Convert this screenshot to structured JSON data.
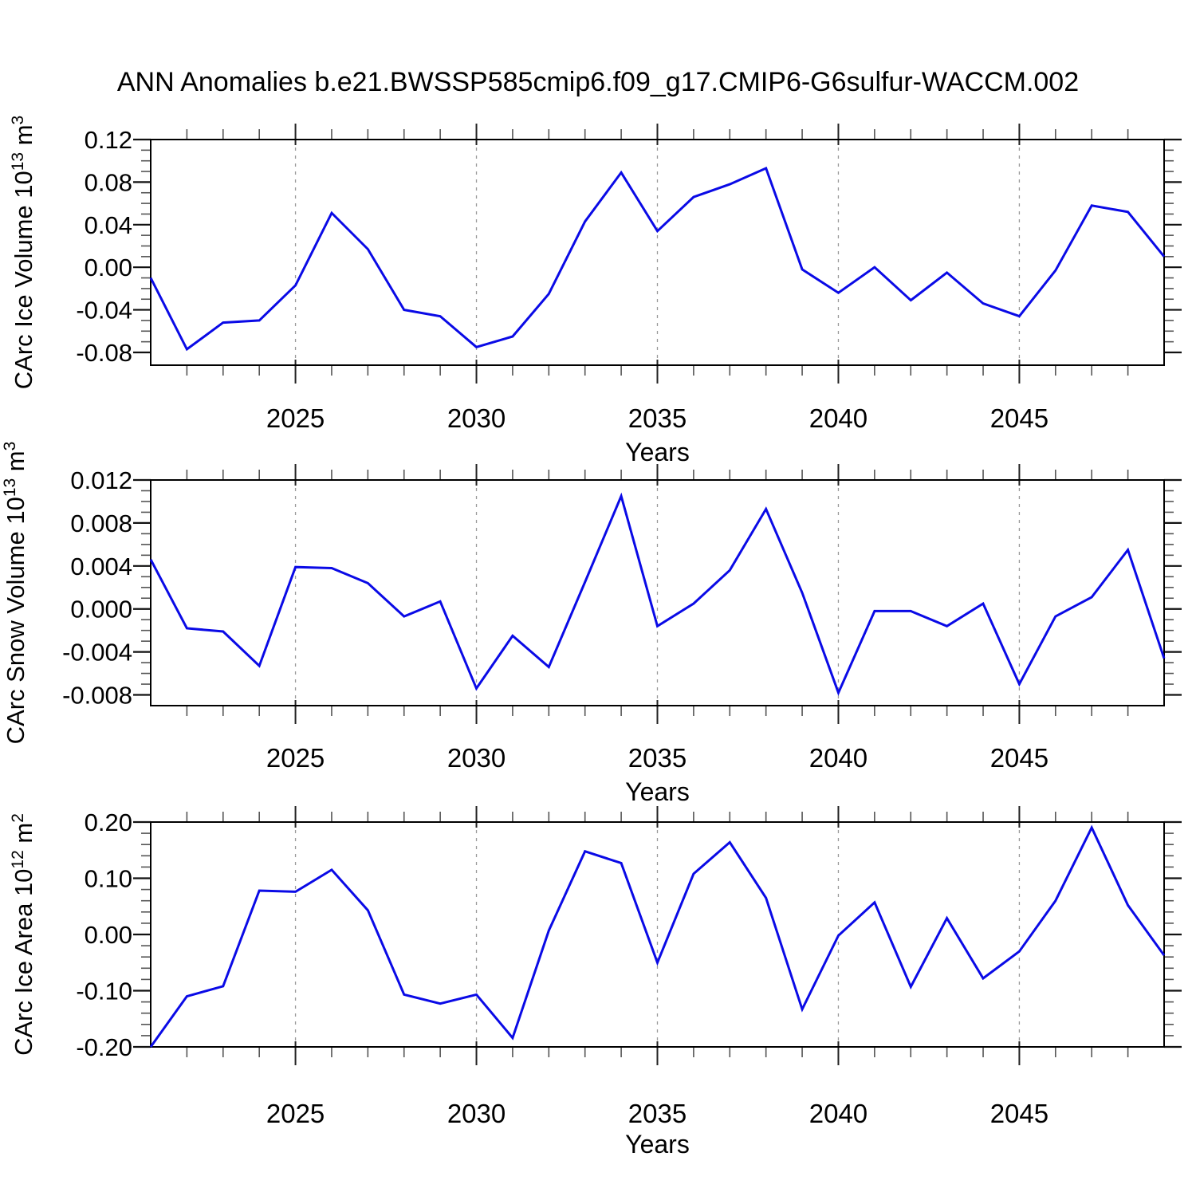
{
  "page_title": "ANN Anomalies b.e21.BWSSP585cmip6.f09_g17.CMIP6-G6sulfur-WACCM.002",
  "colors": {
    "line": "#0a0ae6",
    "grid": "#999999",
    "axis": "#000000",
    "minor_tick": "#555555"
  },
  "x_axis": {
    "label": "Years",
    "start": 2021,
    "end": 2049,
    "major_ticks": [
      2025,
      2030,
      2035,
      2040,
      2045
    ],
    "minor_tick_step": 1
  },
  "chart_data": [
    {
      "name": "carc-ice-volume",
      "type": "line",
      "ylabel_plain": "CArc Ice Volume 10^13 m^3",
      "ylabel_segments": [
        {
          "t": "CArc Ice Volume 10"
        },
        {
          "t": "13",
          "sup": true
        },
        {
          "t": " m"
        },
        {
          "t": "3",
          "sup": true
        }
      ],
      "xlabel": "Years",
      "x": [
        2021,
        2022,
        2023,
        2024,
        2025,
        2026,
        2027,
        2028,
        2029,
        2030,
        2031,
        2032,
        2033,
        2034,
        2035,
        2036,
        2037,
        2038,
        2039,
        2040,
        2041,
        2042,
        2043,
        2044,
        2045,
        2046,
        2047,
        2048,
        2049
      ],
      "values": [
        -0.01,
        -0.077,
        -0.052,
        -0.05,
        -0.017,
        0.051,
        0.017,
        -0.04,
        -0.046,
        -0.075,
        -0.065,
        -0.025,
        0.043,
        0.089,
        0.034,
        0.066,
        0.078,
        0.093,
        -0.002,
        -0.024,
        0.0,
        -0.031,
        -0.005,
        -0.034,
        -0.046,
        -0.003,
        0.058,
        0.052,
        0.01
      ],
      "ylim": [
        -0.092,
        0.12
      ],
      "yticks": [
        {
          "v": 0.12,
          "label": "0.12"
        },
        {
          "v": 0.08,
          "label": "0.08"
        },
        {
          "v": 0.04,
          "label": "0.04"
        },
        {
          "v": 0.0,
          "label": "0.00"
        },
        {
          "v": -0.04,
          "label": "-0.04"
        },
        {
          "v": -0.08,
          "label": "-0.08"
        }
      ],
      "y_minor_step": 0.01,
      "grid": "vertical-dashed"
    },
    {
      "name": "carc-snow-volume",
      "type": "line",
      "ylabel_plain": "CArc Snow Volume 10^13 m^3",
      "ylabel_segments": [
        {
          "t": "CArc Snow Volume 10"
        },
        {
          "t": "13",
          "sup": true
        },
        {
          "t": " m"
        },
        {
          "t": "3",
          "sup": true
        }
      ],
      "xlabel": "Years",
      "x": [
        2021,
        2022,
        2023,
        2024,
        2025,
        2026,
        2027,
        2028,
        2029,
        2030,
        2031,
        2032,
        2033,
        2034,
        2035,
        2036,
        2037,
        2038,
        2039,
        2040,
        2041,
        2042,
        2043,
        2044,
        2045,
        2046,
        2047,
        2048,
        2049
      ],
      "values": [
        0.0046,
        -0.0018,
        -0.0021,
        -0.0053,
        0.0039,
        0.0038,
        0.0024,
        -0.0007,
        0.0007,
        -0.0074,
        -0.0025,
        -0.0054,
        0.0025,
        0.0105,
        -0.0016,
        0.0005,
        0.0036,
        0.0093,
        0.0015,
        -0.0078,
        -0.0002,
        -0.0002,
        -0.0016,
        0.0005,
        -0.007,
        -0.0007,
        0.0011,
        0.0055,
        -0.0046
      ],
      "ylim": [
        -0.009,
        0.012
      ],
      "yticks": [
        {
          "v": 0.012,
          "label": "0.012"
        },
        {
          "v": 0.008,
          "label": "0.008"
        },
        {
          "v": 0.004,
          "label": "0.004"
        },
        {
          "v": 0.0,
          "label": "0.000"
        },
        {
          "v": -0.004,
          "label": "-0.004"
        },
        {
          "v": -0.008,
          "label": "-0.008"
        }
      ],
      "y_minor_step": 0.001,
      "grid": "vertical-dashed"
    },
    {
      "name": "carc-ice-area",
      "type": "line",
      "ylabel_plain": "CArc Ice Area 10^12 m^2",
      "ylabel_segments": [
        {
          "t": "CArc Ice Area 10"
        },
        {
          "t": "12",
          "sup": true
        },
        {
          "t": " m"
        },
        {
          "t": "2",
          "sup": true
        }
      ],
      "xlabel": "Years",
      "x": [
        2021,
        2022,
        2023,
        2024,
        2025,
        2026,
        2027,
        2028,
        2029,
        2030,
        2031,
        2032,
        2033,
        2034,
        2035,
        2036,
        2037,
        2038,
        2039,
        2040,
        2041,
        2042,
        2043,
        2044,
        2045,
        2046,
        2047,
        2048,
        2049
      ],
      "values": [
        -0.2,
        -0.11,
        -0.092,
        0.078,
        0.076,
        0.115,
        0.043,
        -0.107,
        -0.123,
        -0.107,
        -0.184,
        0.007,
        0.148,
        0.127,
        -0.05,
        0.108,
        0.164,
        0.065,
        -0.133,
        -0.002,
        0.057,
        -0.093,
        0.029,
        -0.078,
        -0.03,
        0.06,
        0.19,
        0.052,
        -0.037
      ],
      "ylim": [
        -0.2,
        0.2
      ],
      "yticks": [
        {
          "v": 0.2,
          "label": "0.20"
        },
        {
          "v": 0.1,
          "label": "0.10"
        },
        {
          "v": 0.0,
          "label": "0.00"
        },
        {
          "v": -0.1,
          "label": "-0.10"
        },
        {
          "v": -0.2,
          "label": "-0.20"
        }
      ],
      "y_minor_step": 0.02,
      "grid": "vertical-dashed"
    }
  ]
}
